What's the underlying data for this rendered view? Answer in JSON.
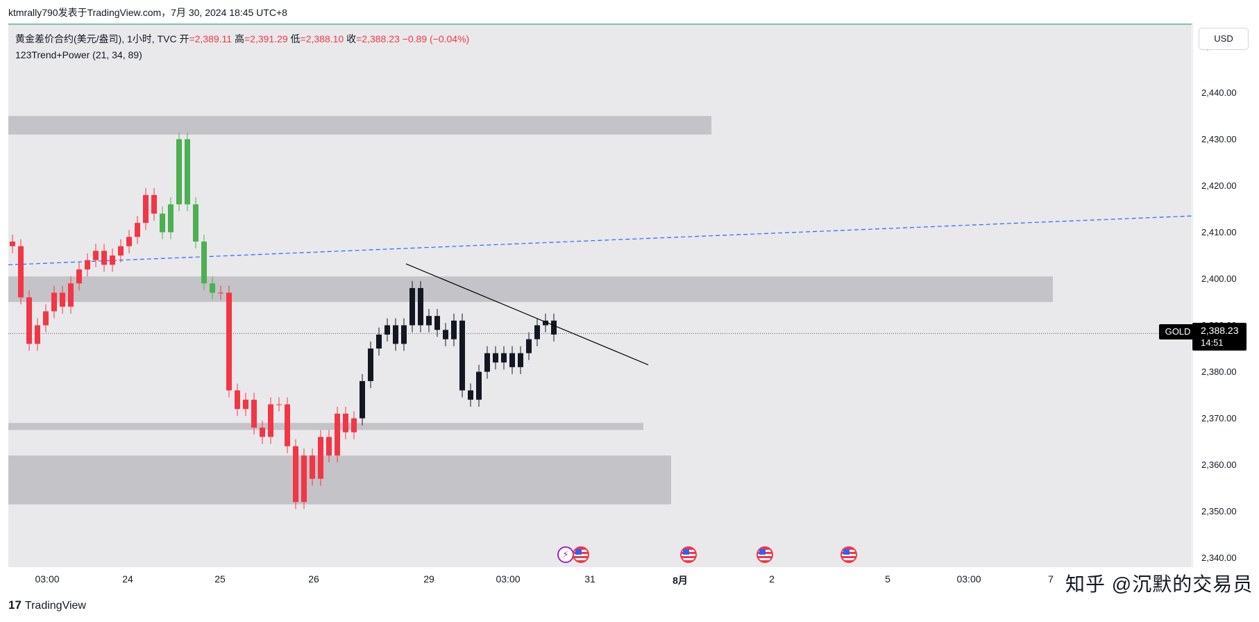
{
  "header": {
    "title": "ktmrally790发表于TradingView.com，7月 30, 2024 18:45 UTC+8"
  },
  "legend": {
    "symbol_line": "黄金差价合约(美元/盎司), 1小时, TVC",
    "open_label": "开",
    "open": "=2,389.11",
    "high_label": "高",
    "high": "=2,391.29",
    "low_label": "低",
    "low": "=2,388.10",
    "close_label": "收",
    "close": "=2,388.23",
    "change": "−0.89 (−0.04%)",
    "indicator": "123Trend+Power (21, 34, 89)"
  },
  "price_axis": {
    "currency_button": "USD",
    "ticks": [
      "2,450.00",
      "2,440.00",
      "2,430.00",
      "2,420.00",
      "2,410.00",
      "2,400.00",
      "2,390.00",
      "2,380.00",
      "2,370.00",
      "2,360.00",
      "2,350.00",
      "2,340.00"
    ],
    "current_symbol": "GOLD",
    "current_price": "2,388.23",
    "countdown": "14:51"
  },
  "time_axis": {
    "labels": [
      "03:00",
      "24",
      "25",
      "26",
      "29",
      "03:00",
      "31",
      "8月",
      "2",
      "5",
      "03:00",
      "7"
    ],
    "bold_label": "8月"
  },
  "events": [
    "bolt-icon",
    "flag-icon",
    "flag-icon",
    "flag-icon",
    "flag-icon"
  ],
  "footer": {
    "brand": "TradingView",
    "logo": "17"
  },
  "watermark": "知乎 @沉默的交易员",
  "colors": {
    "up_green": "#4caf50",
    "down_red": "#f23645",
    "bar_black": "#131722",
    "trend_blue": "#2962ff",
    "zone_gray": "#c4c3c8"
  },
  "chart_data": {
    "type": "candlestick",
    "ylim": [
      2338,
      2455
    ],
    "price_line": 2388.23,
    "zones": [
      {
        "low": 2431,
        "high": 2435
      },
      {
        "low": 2395,
        "high": 2400.5
      },
      {
        "low": 2367.5,
        "high": 2369
      },
      {
        "low": 2351.5,
        "high": 2362
      }
    ],
    "trend_line_start": 2403,
    "trend_line_end": 2413.5,
    "resistance_line_start": 2403.2,
    "resistance_line_end": 2381.5,
    "closes": [
      2407,
      2396,
      2386,
      2390,
      2393,
      2397,
      2394,
      2399,
      2402,
      2404,
      2406,
      2403,
      2405,
      2407,
      2409,
      2412,
      2418,
      2414,
      2410,
      2416,
      2430,
      2416,
      2408,
      2399,
      2397,
      2397,
      2376,
      2372,
      2374,
      2368,
      2366,
      2373,
      2373,
      2364,
      2352,
      2362,
      2357,
      2366,
      2362,
      2371,
      2367,
      2370,
      2378,
      2385,
      2388,
      2390,
      2386,
      2390,
      2398,
      2390,
      2392,
      2389,
      2387,
      2391,
      2376,
      2374,
      2380,
      2384,
      2382,
      2384,
      2381,
      2384,
      2387,
      2390,
      2391,
      2388
    ]
  }
}
